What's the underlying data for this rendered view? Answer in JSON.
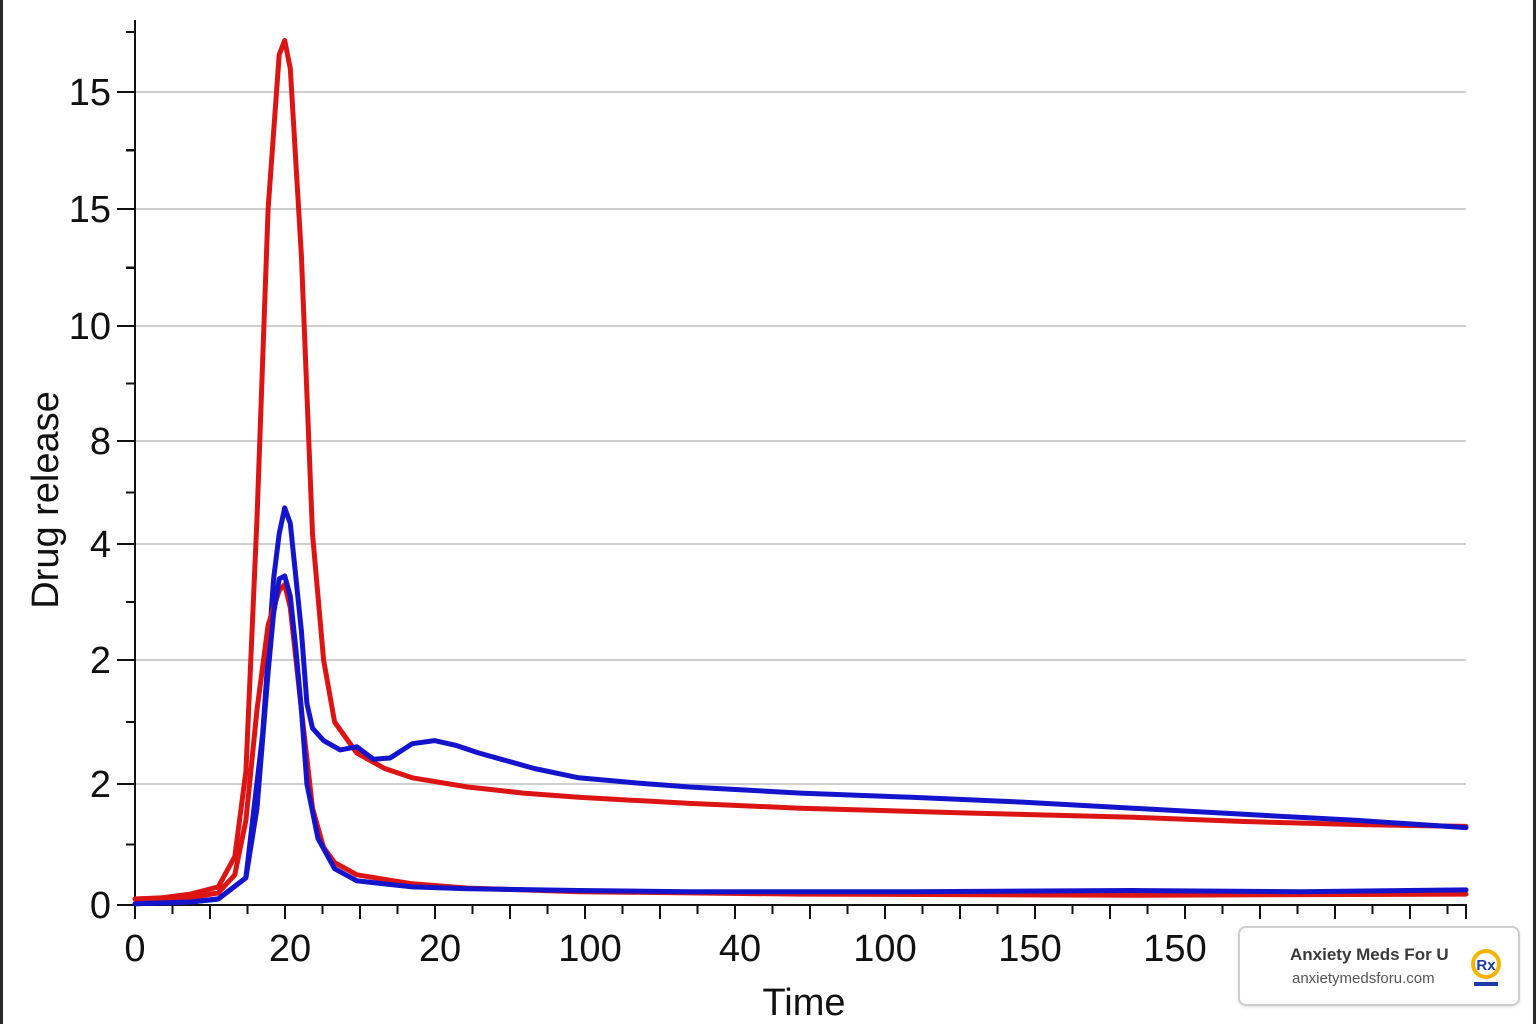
{
  "chart_data": {
    "type": "line",
    "title": "",
    "xlabel": "Time",
    "ylabel": "Drug release",
    "y_tick_labels": [
      "0",
      "2",
      "2",
      "4",
      "8",
      "10",
      "15",
      "15"
    ],
    "x_tick_labels": [
      "0",
      "20",
      "20",
      "100",
      "40",
      "100",
      "150",
      "150"
    ],
    "grid": true,
    "legend": "none",
    "colors": {
      "red": "#dc1414",
      "blue": "#1414cc"
    },
    "series": [
      {
        "color": "red",
        "points": [
          [
            0,
            0.1
          ],
          [
            5,
            0.12
          ],
          [
            10,
            0.18
          ],
          [
            15,
            0.3
          ],
          [
            18,
            0.8
          ],
          [
            20,
            2.2
          ],
          [
            22,
            6.5
          ],
          [
            24,
            12.5
          ],
          [
            26,
            15.8
          ],
          [
            27,
            16.1
          ],
          [
            28,
            15.5
          ],
          [
            30,
            11.5
          ],
          [
            32,
            6.2
          ],
          [
            34,
            4.0
          ],
          [
            36,
            3.0
          ],
          [
            40,
            2.5
          ],
          [
            45,
            2.25
          ],
          [
            50,
            2.1
          ],
          [
            60,
            1.95
          ],
          [
            70,
            1.85
          ],
          [
            80,
            1.78
          ],
          [
            100,
            1.68
          ],
          [
            120,
            1.6
          ],
          [
            150,
            1.52
          ],
          [
            180,
            1.45
          ],
          [
            200,
            1.38
          ],
          [
            220,
            1.33
          ],
          [
            240,
            1.3
          ]
        ]
      },
      {
        "color": "blue",
        "points": [
          [
            0,
            0.02
          ],
          [
            10,
            0.05
          ],
          [
            15,
            0.1
          ],
          [
            20,
            0.45
          ],
          [
            23,
            2.8
          ],
          [
            25,
            5.4
          ],
          [
            26,
            6.2
          ],
          [
            27,
            6.7
          ],
          [
            28,
            6.4
          ],
          [
            30,
            4.5
          ],
          [
            31,
            3.3
          ],
          [
            32,
            2.9
          ],
          [
            34,
            2.7
          ],
          [
            37,
            2.55
          ],
          [
            40,
            2.6
          ],
          [
            43,
            2.4
          ],
          [
            46,
            2.42
          ],
          [
            50,
            2.65
          ],
          [
            54,
            2.7
          ],
          [
            58,
            2.62
          ],
          [
            62,
            2.5
          ],
          [
            66,
            2.4
          ],
          [
            72,
            2.25
          ],
          [
            80,
            2.1
          ],
          [
            90,
            2.02
          ],
          [
            100,
            1.95
          ],
          [
            120,
            1.85
          ],
          [
            140,
            1.78
          ],
          [
            160,
            1.7
          ],
          [
            180,
            1.6
          ],
          [
            200,
            1.5
          ],
          [
            220,
            1.4
          ],
          [
            240,
            1.28
          ]
        ]
      },
      {
        "color": "red",
        "points": [
          [
            0,
            0.1
          ],
          [
            10,
            0.12
          ],
          [
            15,
            0.2
          ],
          [
            18,
            0.5
          ],
          [
            20,
            1.4
          ],
          [
            22,
            3.2
          ],
          [
            24,
            4.6
          ],
          [
            26,
            5.2
          ],
          [
            27,
            5.3
          ],
          [
            28,
            4.9
          ],
          [
            30,
            3.2
          ],
          [
            32,
            1.6
          ],
          [
            34,
            0.95
          ],
          [
            36,
            0.7
          ],
          [
            40,
            0.5
          ],
          [
            50,
            0.35
          ],
          [
            60,
            0.28
          ],
          [
            80,
            0.22
          ],
          [
            120,
            0.18
          ],
          [
            180,
            0.16
          ],
          [
            240,
            0.18
          ]
        ]
      },
      {
        "color": "blue",
        "points": [
          [
            0,
            0.02
          ],
          [
            10,
            0.05
          ],
          [
            15,
            0.1
          ],
          [
            20,
            0.45
          ],
          [
            22,
            1.6
          ],
          [
            24,
            3.8
          ],
          [
            25,
            4.8
          ],
          [
            26,
            5.4
          ],
          [
            27,
            5.45
          ],
          [
            28,
            5.1
          ],
          [
            29,
            4.2
          ],
          [
            30,
            3.2
          ],
          [
            31,
            2.0
          ],
          [
            33,
            1.1
          ],
          [
            36,
            0.6
          ],
          [
            40,
            0.4
          ],
          [
            50,
            0.3
          ],
          [
            60,
            0.27
          ],
          [
            80,
            0.24
          ],
          [
            100,
            0.22
          ],
          [
            140,
            0.22
          ],
          [
            180,
            0.24
          ],
          [
            210,
            0.22
          ],
          [
            240,
            0.25
          ]
        ]
      }
    ]
  },
  "watermark": {
    "title": "Anxiety Meds For U",
    "url": "anxietymedsforu.com",
    "logo_text": "Rx"
  }
}
